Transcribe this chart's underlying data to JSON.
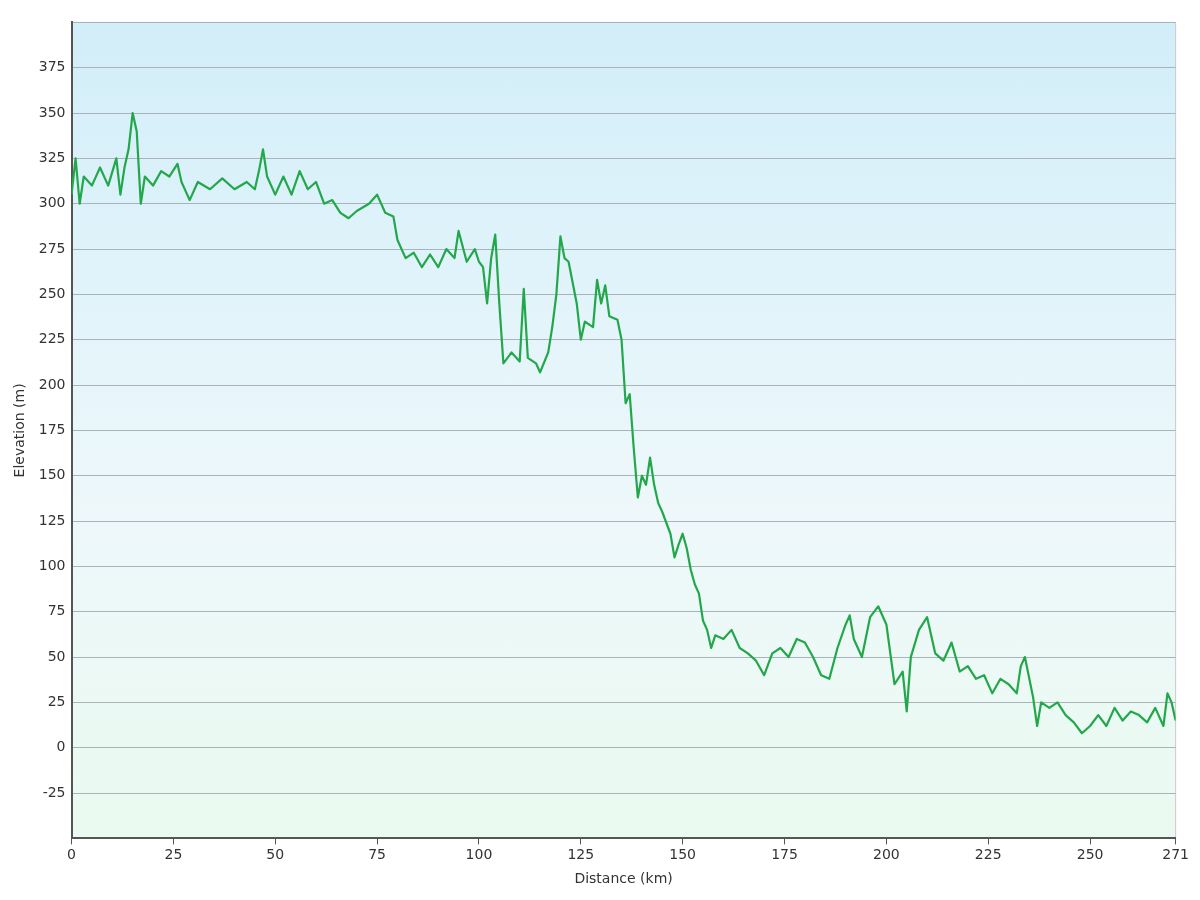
{
  "chart_data": {
    "type": "line",
    "xlabel": "Distance (km)",
    "ylabel": "Elevation (m)",
    "xlim": [
      0,
      271
    ],
    "xticks": [
      0,
      25,
      50,
      75,
      100,
      125,
      150,
      175,
      200,
      225,
      250,
      271
    ],
    "ylim": [
      -50,
      400
    ],
    "yticks": [
      {
        "value": -50,
        "label": null
      },
      -25,
      0,
      25,
      50,
      75,
      100,
      125,
      150,
      175,
      200,
      225,
      250,
      275,
      300,
      325,
      350,
      375,
      {
        "value": 400,
        "label": null
      }
    ],
    "grid": "y",
    "legend": false,
    "marker": "none",
    "line_style": "solid",
    "x": [
      0,
      1,
      2,
      3,
      5,
      7,
      9,
      11,
      12,
      13,
      14,
      15,
      16,
      17,
      18,
      20,
      22,
      24,
      26,
      27,
      29,
      31,
      34,
      37,
      40,
      43,
      45,
      46,
      47,
      48,
      50,
      52,
      54,
      56,
      58,
      60,
      62,
      64,
      66,
      68,
      70,
      73,
      75,
      77,
      79,
      80,
      82,
      84,
      86,
      88,
      90,
      92,
      94,
      95,
      97,
      99,
      100,
      101,
      102,
      103,
      104,
      105,
      106,
      108,
      110,
      111,
      112,
      114,
      115,
      117,
      118,
      119,
      120,
      121,
      122,
      124,
      125,
      126,
      128,
      129,
      130,
      131,
      132,
      134,
      135,
      136,
      137,
      138,
      139,
      140,
      141,
      142,
      143,
      144,
      145,
      147,
      148,
      149,
      150,
      151,
      152,
      153,
      154,
      155,
      156,
      157,
      158,
      160,
      162,
      164,
      166,
      168,
      170,
      172,
      174,
      176,
      178,
      180,
      182,
      184,
      186,
      188,
      190,
      191,
      192,
      194,
      196,
      198,
      200,
      202,
      204,
      205,
      206,
      208,
      210,
      212,
      214,
      216,
      218,
      220,
      222,
      224,
      226,
      228,
      230,
      232,
      233,
      234,
      236,
      237,
      238,
      240,
      242,
      244,
      246,
      248,
      250,
      252,
      254,
      256,
      258,
      260,
      262,
      264,
      266,
      268,
      269,
      270,
      271
    ],
    "series": [
      {
        "color": "#22a84a",
        "values": [
          305,
          325,
          300,
          315,
          310,
          320,
          310,
          325,
          305,
          320,
          330,
          350,
          340,
          300,
          315,
          310,
          318,
          315,
          322,
          312,
          302,
          312,
          308,
          314,
          308,
          312,
          308,
          318,
          330,
          315,
          305,
          315,
          305,
          318,
          308,
          312,
          300,
          302,
          295,
          292,
          296,
          300,
          305,
          295,
          293,
          280,
          270,
          273,
          265,
          272,
          265,
          275,
          270,
          285,
          268,
          275,
          268,
          265,
          245,
          270,
          283,
          245,
          212,
          218,
          213,
          253,
          215,
          212,
          207,
          218,
          232,
          250,
          282,
          270,
          268,
          245,
          225,
          235,
          232,
          258,
          245,
          255,
          238,
          236,
          225,
          190,
          195,
          165,
          138,
          150,
          145,
          160,
          145,
          135,
          130,
          118,
          105,
          112,
          118,
          110,
          98,
          90,
          85,
          70,
          65,
          55,
          62,
          60,
          65,
          55,
          52,
          48,
          40,
          52,
          55,
          50,
          60,
          58,
          50,
          40,
          38,
          55,
          68,
          73,
          60,
          50,
          72,
          78,
          68,
          35,
          42,
          20,
          50,
          65,
          72,
          52,
          48,
          58,
          42,
          45,
          38,
          40,
          30,
          38,
          35,
          30,
          45,
          50,
          28,
          12,
          25,
          22,
          25,
          18,
          14,
          8,
          12,
          18,
          12,
          22,
          15,
          20,
          18,
          14,
          22,
          12,
          30,
          25,
          15
        ]
      }
    ]
  }
}
